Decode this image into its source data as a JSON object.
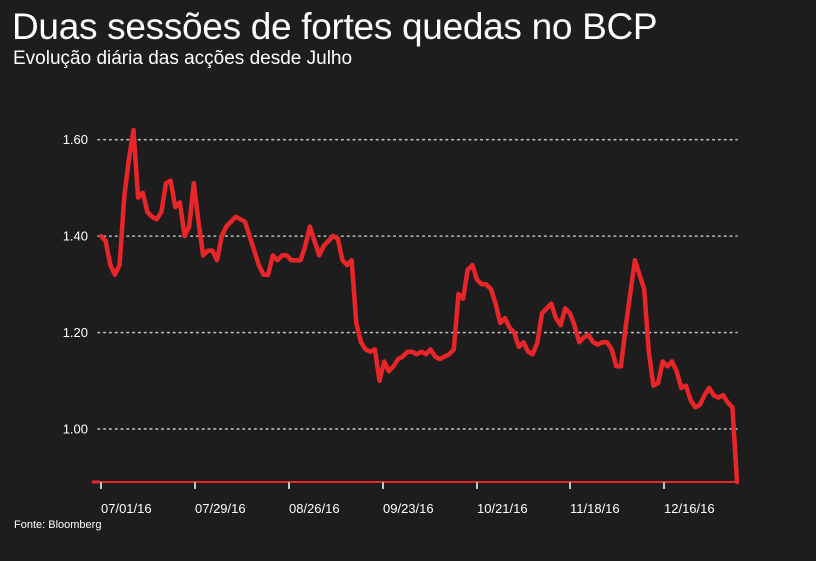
{
  "title": "Duas sessões de fortes quedas no BCP",
  "subtitle": "Evolução diária das acções desde Julho",
  "source": "Fonte: Bloomberg",
  "colors": {
    "background": "#1d1d1d",
    "line": "#e8262a",
    "grid": "#bdbdbd",
    "axis": "#e8262a",
    "text": "#ffffff"
  },
  "chart_data": {
    "type": "line",
    "title": "Duas sessões de fortes quedas no BCP",
    "subtitle": "Evolução diária das acções desde Julho",
    "xlabel": "",
    "ylabel": "",
    "ylim": [
      0.89,
      1.645
    ],
    "yticks": [
      1.0,
      1.2,
      1.4,
      1.6
    ],
    "ytick_labels": [
      "1.00",
      "1.20",
      "1.40",
      "1.60"
    ],
    "xticks": [
      "07/01/16",
      "07/29/16",
      "08/26/16",
      "09/23/16",
      "10/21/16",
      "11/18/16",
      "12/16/16"
    ],
    "grid": "horizontal dotted",
    "legend": "none",
    "series": [
      {
        "values": [
          1.4,
          1.39,
          1.34,
          1.32,
          1.34,
          1.48,
          1.56,
          1.62,
          1.48,
          1.49,
          1.45,
          1.44,
          1.435,
          1.45,
          1.51,
          1.515,
          1.46,
          1.47,
          1.4,
          1.42,
          1.51,
          1.43,
          1.36,
          1.37,
          1.37,
          1.35,
          1.4,
          1.42,
          1.43,
          1.44,
          1.435,
          1.43,
          1.4,
          1.37,
          1.34,
          1.32,
          1.32,
          1.36,
          1.35,
          1.36,
          1.36,
          1.35,
          1.35,
          1.35,
          1.38,
          1.42,
          1.39,
          1.36,
          1.38,
          1.39,
          1.4,
          1.395,
          1.35,
          1.34,
          1.35,
          1.22,
          1.18,
          1.165,
          1.16,
          1.165,
          1.1,
          1.14,
          1.12,
          1.13,
          1.145,
          1.15,
          1.16,
          1.16,
          1.155,
          1.16,
          1.155,
          1.165,
          1.15,
          1.145,
          1.15,
          1.155,
          1.165,
          1.28,
          1.27,
          1.33,
          1.34,
          1.31,
          1.3,
          1.3,
          1.29,
          1.26,
          1.22,
          1.23,
          1.21,
          1.2,
          1.17,
          1.18,
          1.16,
          1.155,
          1.18,
          1.24,
          1.25,
          1.26,
          1.23,
          1.215,
          1.25,
          1.24,
          1.215,
          1.18,
          1.19,
          1.195,
          1.18,
          1.175,
          1.18,
          1.18,
          1.165,
          1.13,
          1.13,
          1.21,
          1.28,
          1.35,
          1.32,
          1.29,
          1.16,
          1.09,
          1.095,
          1.14,
          1.13,
          1.14,
          1.12,
          1.085,
          1.09,
          1.06,
          1.045,
          1.05,
          1.07,
          1.085,
          1.07,
          1.065,
          1.07,
          1.055,
          1.045,
          0.89
        ]
      }
    ]
  }
}
